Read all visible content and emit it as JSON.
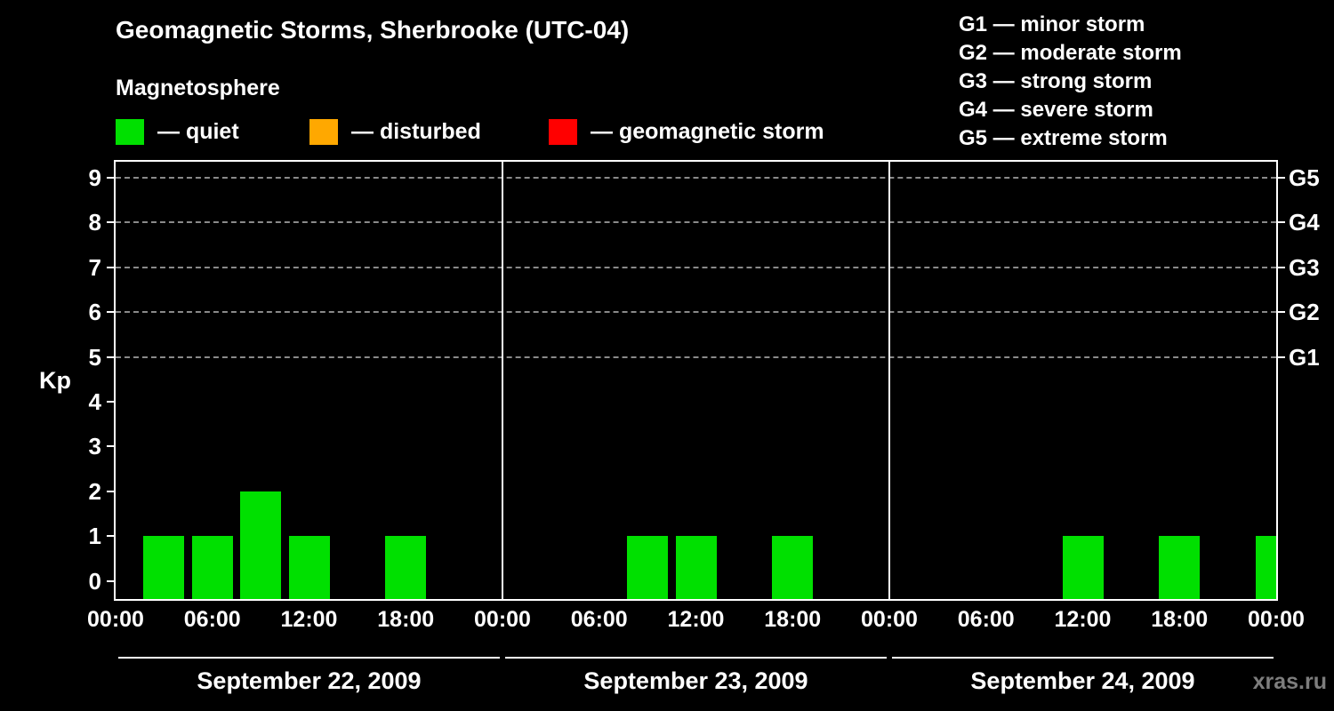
{
  "title": "Geomagnetic Storms, Sherbrooke (UTC-04)",
  "subtitle": "Magnetosphere",
  "legend": {
    "items": [
      {
        "name": "quiet",
        "label": "— quiet",
        "color": "#00e000"
      },
      {
        "name": "disturbed",
        "label": "— disturbed",
        "color": "#ffa800"
      },
      {
        "name": "storm",
        "label": "— geomagnetic storm",
        "color": "#ff0000"
      }
    ]
  },
  "g_legend": [
    "G1 — minor storm",
    "G2 — moderate storm",
    "G3 — strong storm",
    "G4 — severe storm",
    "G5 — extreme storm"
  ],
  "kp_axis_label": "Kp",
  "watermark": "xras.ru",
  "chart_data": {
    "type": "bar",
    "title": "Geomagnetic Storms, Sherbrooke (UTC-04)",
    "ylabel": "Kp",
    "ylim": [
      0,
      9
    ],
    "yticks": [
      0,
      1,
      2,
      3,
      4,
      5,
      6,
      7,
      8,
      9
    ],
    "g_levels": [
      {
        "label": "G1",
        "kp": 5
      },
      {
        "label": "G2",
        "kp": 6
      },
      {
        "label": "G3",
        "kp": 7
      },
      {
        "label": "G4",
        "kp": 8
      },
      {
        "label": "G5",
        "kp": 9
      }
    ],
    "bar_color": "#00e000",
    "interval_hours": 3,
    "kp_hours": [
      3,
      6,
      9,
      12,
      15,
      18,
      21,
      24
    ],
    "xtick_labels": [
      "00:00",
      "06:00",
      "12:00",
      "18:00"
    ],
    "x_end_label": "00:00",
    "days": [
      {
        "date": "September 22, 2009",
        "kp": [
          1,
          1,
          2,
          1,
          0,
          1,
          0,
          0
        ]
      },
      {
        "date": "September 23, 2009",
        "kp": [
          0,
          0,
          1,
          1,
          0,
          1,
          0,
          0
        ]
      },
      {
        "date": "September 24, 2009",
        "kp": [
          0,
          0,
          0,
          1,
          0,
          1,
          0,
          1
        ]
      }
    ],
    "legend_position": "top",
    "grid": "dashed horizontal at Kp 5..9"
  }
}
